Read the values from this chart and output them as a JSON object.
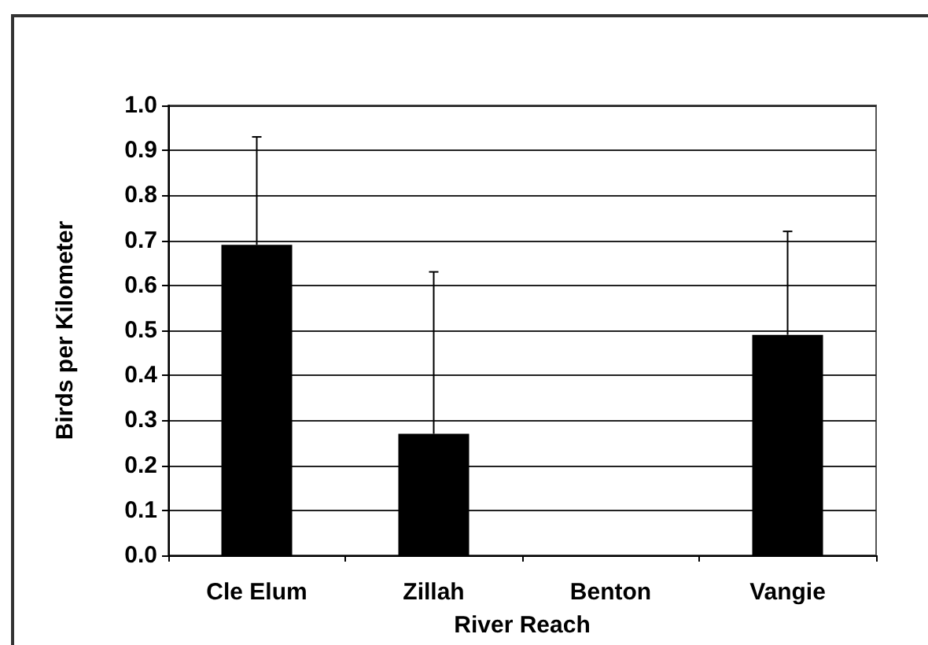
{
  "chart_data": {
    "type": "bar",
    "xlabel": "River Reach",
    "ylabel": "Birds per Kilometer",
    "categories": [
      "Cle Elum",
      "Zillah",
      "Benton",
      "Vangie"
    ],
    "values": [
      0.69,
      0.27,
      0,
      0.49
    ],
    "color": "#000000",
    "errors": [
      [
        0.69,
        0.93
      ],
      [
        0.27,
        0.63
      ],
      null,
      [
        0.49,
        0.72
      ]
    ],
    "ylim": [
      0,
      1
    ],
    "yticks": [
      {
        "value": 0,
        "label": "0.0"
      },
      0.1,
      0.2,
      0.3,
      0.4,
      0.5,
      0.6,
      0.7,
      0.8,
      0.9,
      {
        "value": 1,
        "label": "1.0"
      }
    ],
    "grid": "y"
  }
}
